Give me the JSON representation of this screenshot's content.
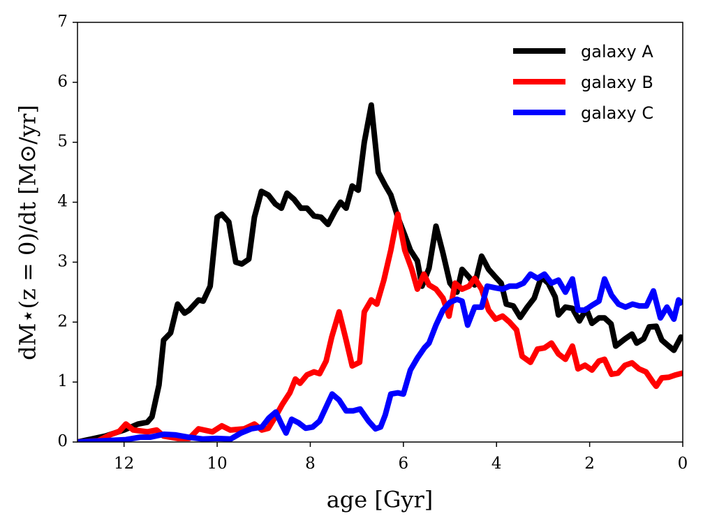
{
  "chart_data": {
    "type": "line",
    "xlabel": "age [Gyr]",
    "ylabel": "dM⋆(z = 0)/dt [M⊙/yr]",
    "xlim": [
      13,
      0
    ],
    "xticks": [
      12,
      10,
      8,
      6,
      4,
      2,
      0
    ],
    "ylim": [
      0,
      7
    ],
    "yticks": [
      0,
      1,
      2,
      3,
      4,
      5,
      6,
      7
    ],
    "legend": "upper right",
    "series": [
      {
        "name": "galaxy A",
        "color": "#000000",
        "x": [
          13,
          12.4,
          12,
          11.7,
          11.5,
          11.4,
          11.25,
          11.15,
          11,
          10.85,
          10.7,
          10.6,
          10.4,
          10.3,
          10.15,
          10,
          9.9,
          9.75,
          9.6,
          9.47,
          9.32,
          9.2,
          9.05,
          8.9,
          8.75,
          8.62,
          8.5,
          8.35,
          8.2,
          8.07,
          7.92,
          7.77,
          7.62,
          7.47,
          7.35,
          7.23,
          7.1,
          6.97,
          6.84,
          6.69,
          6.54,
          6.39,
          6.27,
          6.12,
          5.97,
          5.85,
          5.7,
          5.6,
          5.45,
          5.3,
          5.15,
          5,
          4.85,
          4.74,
          4.59,
          4.47,
          4.32,
          4.17,
          4.02,
          3.9,
          3.79,
          3.64,
          3.49,
          3.34,
          3.19,
          3.04,
          2.89,
          2.74,
          2.67,
          2.52,
          2.37,
          2.22,
          2.07,
          1.95,
          1.8,
          1.68,
          1.54,
          1.44,
          1.24,
          1.09,
          0.99,
          0.84,
          0.72,
          0.57,
          0.45,
          0.3,
          0.19,
          0.04,
          0
        ],
        "values": [
          0,
          0.1,
          0.2,
          0.3,
          0.33,
          0.42,
          0.95,
          1.7,
          1.82,
          2.3,
          2.15,
          2.2,
          2.37,
          2.35,
          2.6,
          3.75,
          3.8,
          3.67,
          3.0,
          2.97,
          3.05,
          3.75,
          4.18,
          4.12,
          3.97,
          3.9,
          4.15,
          4.05,
          3.9,
          3.9,
          3.77,
          3.75,
          3.63,
          3.85,
          4.0,
          3.9,
          4.27,
          4.2,
          5.0,
          5.62,
          4.5,
          4.28,
          4.12,
          3.75,
          3.45,
          3.2,
          3.02,
          2.6,
          2.9,
          3.6,
          3.15,
          2.65,
          2.5,
          2.88,
          2.75,
          2.62,
          3.1,
          2.88,
          2.75,
          2.65,
          2.3,
          2.27,
          2.08,
          2.25,
          2.4,
          2.75,
          2.65,
          2.42,
          2.12,
          2.25,
          2.23,
          2.02,
          2.22,
          1.98,
          2.07,
          2.07,
          1.97,
          1.6,
          1.72,
          1.8,
          1.65,
          1.72,
          1.92,
          1.93,
          1.7,
          1.6,
          1.53,
          1.75,
          1.7
        ]
      },
      {
        "name": "galaxy B",
        "color": "#ff0000",
        "x": [
          13,
          12.56,
          12.3,
          12.1,
          11.96,
          11.8,
          11.5,
          11.3,
          11.15,
          10.85,
          10.6,
          10.4,
          10.1,
          9.9,
          9.72,
          9.42,
          9.2,
          9.04,
          8.9,
          8.75,
          8.6,
          8.44,
          8.32,
          8.22,
          8.07,
          7.92,
          7.8,
          7.66,
          7.54,
          7.38,
          7.23,
          7.1,
          6.94,
          6.84,
          6.69,
          6.57,
          6.42,
          6.27,
          6.12,
          5.97,
          5.82,
          5.7,
          5.56,
          5.45,
          5.3,
          5.15,
          5.02,
          4.89,
          4.74,
          4.59,
          4.47,
          4.32,
          4.17,
          4.02,
          3.87,
          3.72,
          3.57,
          3.45,
          3.27,
          3.12,
          2.97,
          2.82,
          2.67,
          2.52,
          2.37,
          2.25,
          2.1,
          1.95,
          1.8,
          1.68,
          1.53,
          1.39,
          1.24,
          1.09,
          0.94,
          0.79,
          0.64,
          0.57,
          0.45,
          0.3,
          0.15,
          0
        ],
        "values": [
          0,
          0.02,
          0.12,
          0.18,
          0.3,
          0.2,
          0.17,
          0.2,
          0.1,
          0.06,
          0.06,
          0.22,
          0.17,
          0.27,
          0.2,
          0.22,
          0.3,
          0.2,
          0.23,
          0.42,
          0.63,
          0.82,
          1.05,
          0.98,
          1.12,
          1.17,
          1.14,
          1.35,
          1.75,
          2.17,
          1.7,
          1.27,
          1.33,
          2.17,
          2.37,
          2.3,
          2.7,
          3.2,
          3.8,
          3.2,
          2.88,
          2.55,
          2.8,
          2.62,
          2.55,
          2.4,
          2.1,
          2.65,
          2.55,
          2.6,
          2.73,
          2.55,
          2.2,
          2.05,
          2.1,
          2.0,
          1.87,
          1.43,
          1.33,
          1.55,
          1.57,
          1.65,
          1.47,
          1.38,
          1.6,
          1.22,
          1.28,
          1.2,
          1.35,
          1.38,
          1.13,
          1.15,
          1.28,
          1.32,
          1.22,
          1.17,
          1.0,
          0.93,
          1.07,
          1.08,
          1.12,
          1.15
        ]
      },
      {
        "name": "galaxy C",
        "color": "#0000ff",
        "x": [
          13,
          11.96,
          11.66,
          11.44,
          11.14,
          10.91,
          10.61,
          10.31,
          10.01,
          9.71,
          9.49,
          9.27,
          9.04,
          8.89,
          8.74,
          8.62,
          8.52,
          8.4,
          8.25,
          8.1,
          7.95,
          7.8,
          7.65,
          7.53,
          7.38,
          7.23,
          7.08,
          6.93,
          6.75,
          6.6,
          6.49,
          6.39,
          6.27,
          6.12,
          6,
          5.85,
          5.7,
          5.55,
          5.45,
          5.3,
          5.15,
          5,
          4.85,
          4.74,
          4.62,
          4.47,
          4.32,
          4.2,
          4.02,
          3.87,
          3.72,
          3.57,
          3.42,
          3.27,
          3.12,
          2.97,
          2.82,
          2.67,
          2.52,
          2.37,
          2.25,
          2.1,
          1.95,
          1.8,
          1.68,
          1.53,
          1.38,
          1.23,
          1.08,
          0.93,
          0.78,
          0.63,
          0.48,
          0.34,
          0.19,
          0.09,
          0
        ],
        "values": [
          0,
          0.04,
          0.08,
          0.08,
          0.13,
          0.12,
          0.08,
          0.05,
          0.06,
          0.05,
          0.15,
          0.22,
          0.25,
          0.4,
          0.5,
          0.3,
          0.15,
          0.38,
          0.32,
          0.23,
          0.25,
          0.35,
          0.6,
          0.8,
          0.7,
          0.52,
          0.52,
          0.55,
          0.35,
          0.22,
          0.25,
          0.45,
          0.8,
          0.82,
          0.8,
          1.2,
          1.4,
          1.57,
          1.65,
          1.95,
          2.2,
          2.33,
          2.38,
          2.35,
          1.95,
          2.25,
          2.25,
          2.6,
          2.57,
          2.55,
          2.6,
          2.6,
          2.65,
          2.8,
          2.73,
          2.8,
          2.65,
          2.7,
          2.5,
          2.72,
          2.2,
          2.2,
          2.28,
          2.35,
          2.72,
          2.45,
          2.3,
          2.25,
          2.3,
          2.27,
          2.27,
          2.52,
          2.07,
          2.25,
          2.05,
          2.37,
          2.3
        ]
      }
    ]
  }
}
